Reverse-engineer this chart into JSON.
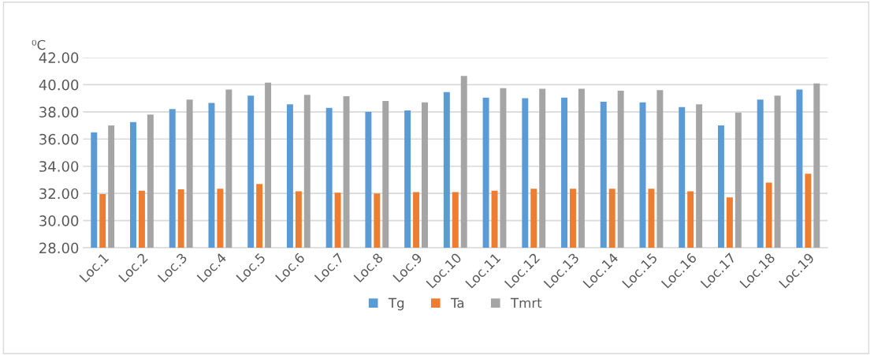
{
  "chart_data": {
    "type": "bar",
    "ylabel": "⁰C",
    "categories": [
      "Loc.1",
      "Loc.2",
      "Loc.3",
      "Loc.4",
      "Loc.5",
      "Loc.6",
      "Loc.7",
      "Loc.8",
      "Loc.9",
      "Loc.10",
      "Loc.11",
      "Loc.12",
      "Loc.13",
      "Loc.14",
      "Loc.15",
      "Loc.16",
      "Loc.17",
      "Loc.18",
      "Loc.19"
    ],
    "series": [
      {
        "name": "Tg",
        "color": "#5b9bd5",
        "values": [
          36.5,
          37.25,
          38.2,
          38.65,
          39.2,
          38.55,
          38.3,
          38.0,
          38.1,
          39.45,
          39.05,
          39.0,
          39.05,
          38.75,
          38.7,
          38.35,
          37.0,
          38.9,
          39.65
        ]
      },
      {
        "name": "Ta",
        "color": "#ed7d31",
        "values": [
          31.95,
          32.2,
          32.3,
          32.35,
          32.7,
          32.15,
          32.05,
          32.0,
          32.1,
          32.1,
          32.2,
          32.35,
          32.35,
          32.35,
          32.35,
          32.15,
          31.7,
          32.8,
          33.45
        ]
      },
      {
        "name": "Tmrt",
        "color": "#a5a5a5",
        "values": [
          37.0,
          37.8,
          38.9,
          39.65,
          40.15,
          39.25,
          39.15,
          38.8,
          38.7,
          40.65,
          39.75,
          39.7,
          39.7,
          39.55,
          39.6,
          38.55,
          37.95,
          39.2,
          40.1
        ]
      }
    ],
    "ylim": [
      28,
      42
    ],
    "yticks": [
      {
        "value": 28,
        "label": "28.00"
      },
      {
        "value": 30,
        "label": "30.00"
      },
      {
        "value": 32,
        "label": "32.00"
      },
      {
        "value": 34,
        "label": "34.00"
      },
      {
        "value": 36,
        "label": "36.00"
      },
      {
        "value": 38,
        "label": "38.00"
      },
      {
        "value": 40,
        "label": "40.00"
      },
      {
        "value": 42,
        "label": "42.00"
      }
    ],
    "grid": "y",
    "legend": "bottom"
  }
}
